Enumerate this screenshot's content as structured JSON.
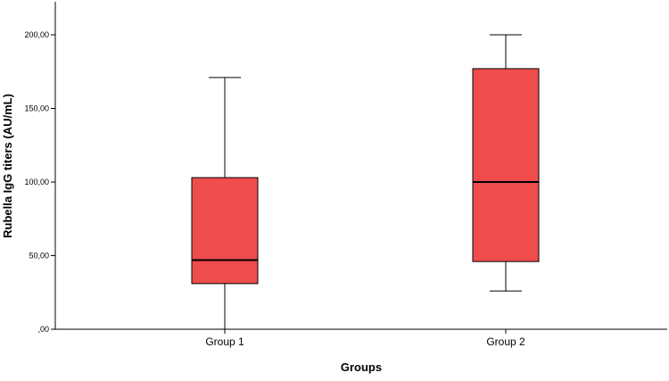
{
  "chart_data": {
    "type": "box",
    "xlabel": "Groups",
    "ylabel": "Rubella IgG titers (AU/mL)",
    "ylim": [
      0,
      200
    ],
    "yticks": [
      0,
      50,
      100,
      150,
      200
    ],
    "ytick_labels": [
      ",00",
      "50,00",
      "100,00",
      "150,00",
      "200,00"
    ],
    "categories": [
      "Group 1",
      "Group 2"
    ],
    "boxes": [
      {
        "category": "Group 1",
        "min": 0,
        "q1": 31,
        "median": 47,
        "q3": 103,
        "max": 171
      },
      {
        "category": "Group 2",
        "min": 26,
        "q1": 46,
        "median": 100,
        "q3": 177,
        "max": 200
      }
    ],
    "box_color": "#EF4C4E",
    "grid": false,
    "legend": "none"
  }
}
